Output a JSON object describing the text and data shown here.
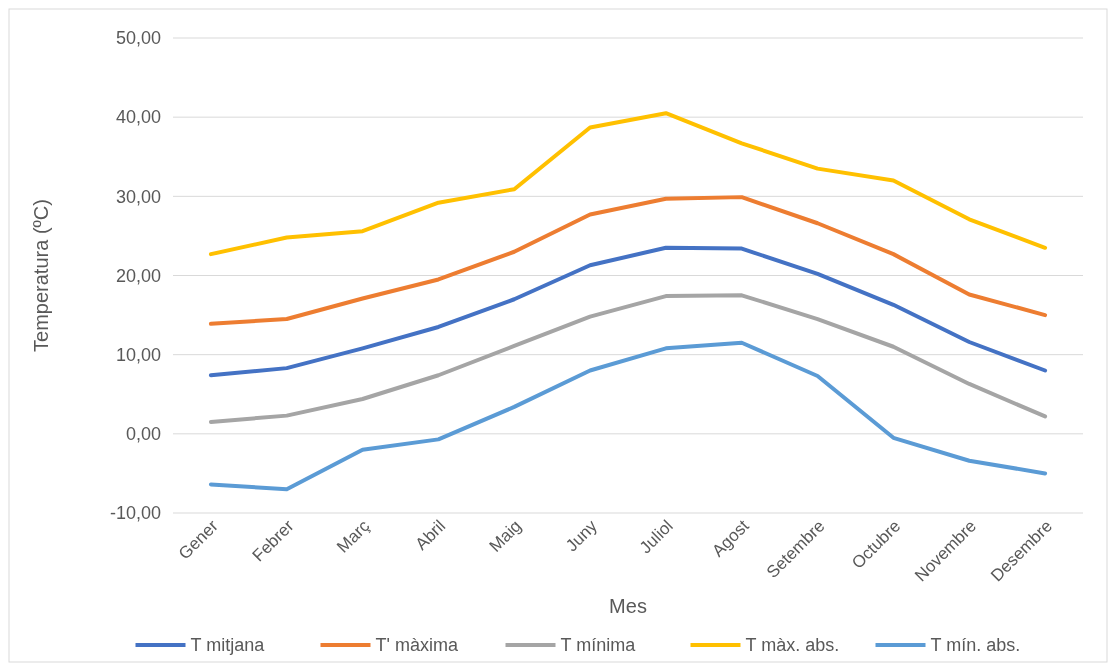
{
  "chart_data": {
    "type": "line",
    "xlabel": "Mes",
    "ylabel": "Temperatura (ºC)",
    "categories": [
      "Gener",
      "Febrer",
      "Març",
      "Abril",
      "Maig",
      "Juny",
      "Juliol",
      "Agost",
      "Setembre",
      "Octubre",
      "Novembre",
      "Desembre"
    ],
    "ylim": [
      -10,
      50
    ],
    "yticks": [
      {
        "value": -10,
        "label": "-10,00"
      },
      {
        "value": 0,
        "label": "0,00"
      },
      {
        "value": 10,
        "label": "10,00"
      },
      {
        "value": 20,
        "label": "20,00"
      },
      {
        "value": 30,
        "label": "30,00"
      },
      {
        "value": 40,
        "label": "40,00"
      },
      {
        "value": 50,
        "label": "50,00"
      }
    ],
    "grid": "y",
    "legend": "bottom",
    "marker": "none",
    "line_style": "solid",
    "series": [
      {
        "name": "T mitjana",
        "color": "#4472c4",
        "values": [
          7.4,
          8.3,
          10.8,
          13.5,
          17.0,
          21.3,
          23.5,
          23.4,
          20.2,
          16.3,
          11.6,
          8.0
        ]
      },
      {
        "name": "T' màxima",
        "color": "#ed7d31",
        "values": [
          13.9,
          14.5,
          17.1,
          19.5,
          23.0,
          27.7,
          29.7,
          29.9,
          26.6,
          22.7,
          17.6,
          15.0
        ]
      },
      {
        "name": "T mínima",
        "color": "#a5a5a5",
        "values": [
          1.5,
          2.3,
          4.4,
          7.4,
          11.1,
          14.8,
          17.4,
          17.5,
          14.5,
          11.0,
          6.3,
          2.2
        ]
      },
      {
        "name": "T màx. abs.",
        "color": "#ffc000",
        "values": [
          22.7,
          24.8,
          25.6,
          29.2,
          30.9,
          38.7,
          40.5,
          36.7,
          33.5,
          32.0,
          27.1,
          23.5
        ]
      },
      {
        "name": "T mín. abs.",
        "color": "#5b9bd5",
        "values": [
          -6.4,
          -7.0,
          -2.0,
          -0.7,
          3.4,
          8.0,
          10.8,
          11.5,
          7.3,
          -0.5,
          -3.4,
          -5.0
        ]
      }
    ]
  }
}
